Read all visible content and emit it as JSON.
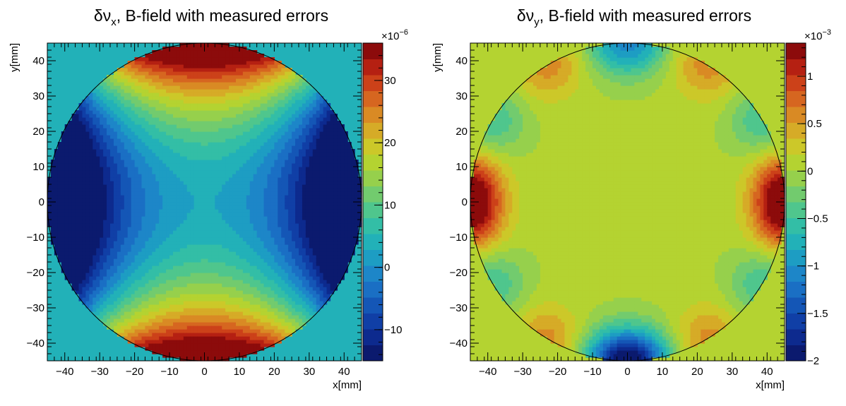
{
  "chart_data": [
    {
      "type": "heatmap",
      "title": "δν",
      "title_sub": "x",
      "title_rest": ", B-field with measured errors",
      "xlabel": "x[mm]",
      "ylabel": "y[mm]",
      "xlim": [
        -45,
        45
      ],
      "ylim": [
        -45,
        45
      ],
      "x_ticks": [
        "−40",
        "−30",
        "−20",
        "−10",
        "0",
        "10",
        "20",
        "30",
        "40"
      ],
      "x_tick_values": [
        -40,
        -30,
        -20,
        -10,
        0,
        10,
        20,
        30,
        40
      ],
      "y_ticks": [
        "−40",
        "−30",
        "−20",
        "−10",
        "0",
        "10",
        "20",
        "30",
        "40"
      ],
      "y_tick_values": [
        -40,
        -30,
        -20,
        -10,
        0,
        10,
        20,
        30,
        40
      ],
      "colorbar": {
        "range": [
          -15,
          36
        ],
        "exponent": "×10",
        "exponent_power": "−6",
        "ticks": [
          "−10",
          "0",
          "10",
          "20",
          "30"
        ],
        "tick_values": [
          -10,
          0,
          10,
          20,
          30
        ]
      },
      "field_description": "quadrupole: positive along y edges (~35e-6), negative along x edges (~-14e-6), ~3e-6 at center"
    },
    {
      "type": "heatmap",
      "title": "δν",
      "title_sub": "y",
      "title_rest": ", B-field with measured errors",
      "xlabel": "x[mm]",
      "ylabel": "y[mm]",
      "xlim": [
        -45,
        45
      ],
      "ylim": [
        -45,
        45
      ],
      "x_ticks": [
        "−40",
        "−30",
        "−20",
        "−10",
        "0",
        "10",
        "20",
        "30",
        "40"
      ],
      "x_tick_values": [
        -40,
        -30,
        -20,
        -10,
        0,
        10,
        20,
        30,
        40
      ],
      "y_ticks": [
        "−40",
        "−30",
        "−20",
        "−10",
        "0",
        "10",
        "20",
        "30",
        "40"
      ],
      "y_tick_values": [
        -40,
        -30,
        -20,
        -10,
        0,
        10,
        20,
        30,
        40
      ],
      "colorbar": {
        "range": [
          -2.0,
          1.35
        ],
        "exponent": "×10",
        "exponent_power": "−3",
        "ticks": [
          "−2",
          "−1.5",
          "−1",
          "−0.5",
          "0",
          "0.5",
          "1"
        ],
        "tick_values": [
          -2,
          -1.5,
          -1,
          -0.5,
          0,
          0.5,
          1
        ]
      },
      "field_description": "higher multipole near circle edge: positive lobes at left/right edges and diagonals (~1.1e-3), negative at bottom (~-2e-3) and top (~-1e-3)"
    }
  ]
}
